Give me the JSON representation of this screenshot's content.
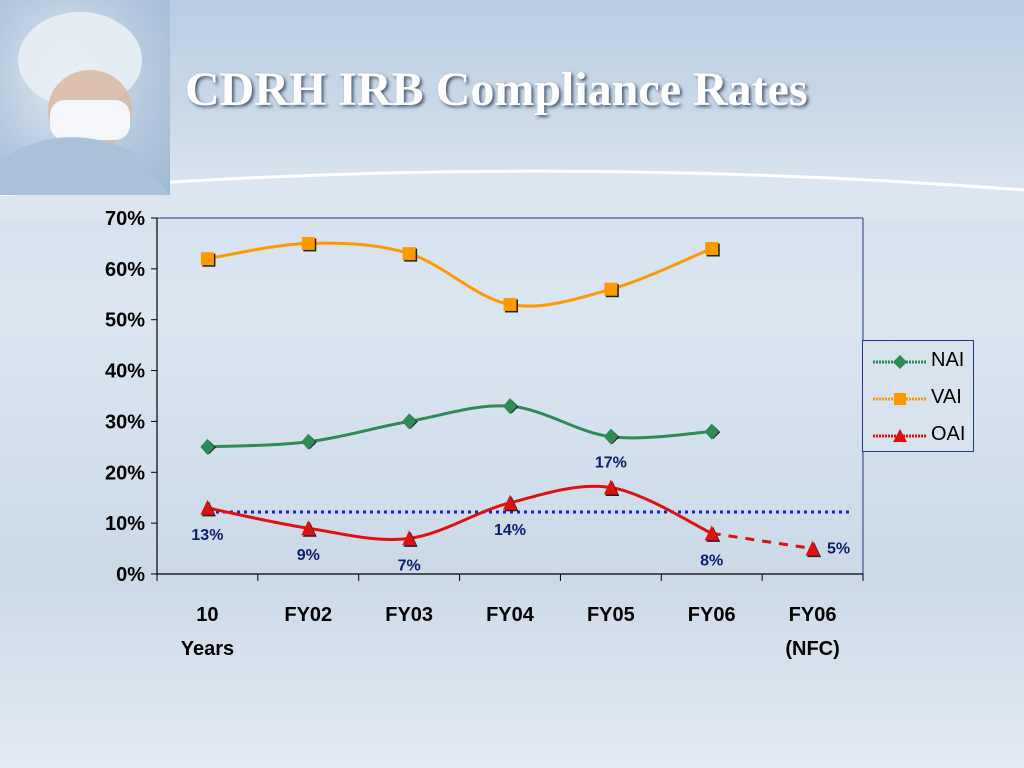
{
  "slide": {
    "title": "CDRH IRB Compliance Rates"
  },
  "colors": {
    "NAI": "#2e8b57",
    "VAI": "#ff9900",
    "OAI": "#e01010",
    "reference_line": "#1a1adc",
    "label_text": "#0b1e6b"
  },
  "chart_data": {
    "type": "line",
    "title": "",
    "xlabel": "",
    "ylabel": "",
    "ylim": [
      0,
      70
    ],
    "yticks": [
      "0%",
      "10%",
      "20%",
      "30%",
      "40%",
      "50%",
      "60%",
      "70%"
    ],
    "categories": [
      [
        "10",
        "Years"
      ],
      [
        "FY02"
      ],
      [
        "FY03"
      ],
      [
        "FY04"
      ],
      [
        "FY05"
      ],
      [
        "FY06"
      ],
      [
        "FY06",
        "(NFC)"
      ]
    ],
    "series": [
      {
        "name": "NAI",
        "marker": "diamond",
        "values": [
          25,
          26,
          30,
          33,
          27,
          28,
          null
        ]
      },
      {
        "name": "VAI",
        "marker": "square",
        "values": [
          62,
          65,
          63,
          53,
          56,
          64,
          null
        ]
      },
      {
        "name": "OAI",
        "marker": "triangle",
        "values": [
          13,
          9,
          7,
          14,
          17,
          8,
          5
        ],
        "dashed_last_segment": true,
        "data_labels": [
          "13%",
          "9%",
          "7%",
          "14%",
          "17%",
          "8%",
          "5%"
        ]
      }
    ],
    "reference_line": {
      "value": 12.2,
      "style": "dotted"
    },
    "legend": {
      "position": "right",
      "entries": [
        "NAI",
        "VAI",
        "OAI"
      ]
    },
    "grid": false
  }
}
